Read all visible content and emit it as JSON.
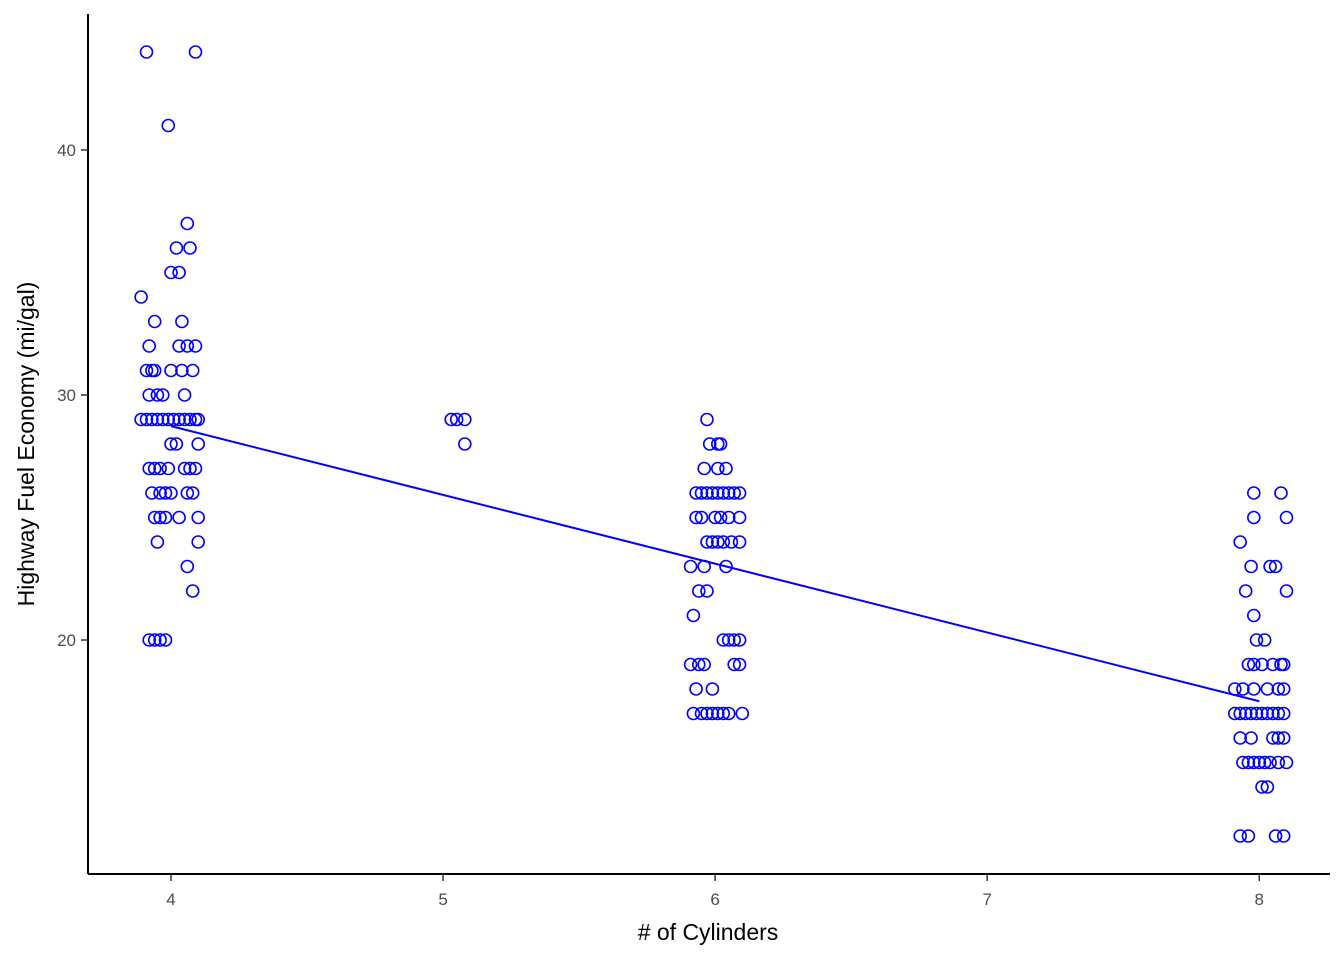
{
  "chart_data": {
    "type": "scatter",
    "title": "",
    "xlabel": "# of Cylinders",
    "ylabel": "Highway Fuel Economy (mi/gal)",
    "xlim": [
      3.695,
      8.26
    ],
    "ylim": [
      10.45,
      45.55
    ],
    "xticks": [
      4,
      5,
      6,
      7,
      8
    ],
    "yticks": [
      20,
      30,
      40
    ],
    "grid": false,
    "legend": "none",
    "point_color": "#0000ff",
    "point_style": "hollow circle",
    "series": [
      {
        "values": [
          [
            3.91,
            44
          ],
          [
            4.09,
            44
          ],
          [
            3.99,
            41
          ],
          [
            3.89,
            34
          ],
          [
            4.06,
            37
          ],
          [
            4.02,
            36
          ],
          [
            4.07,
            36
          ],
          [
            4.0,
            35
          ],
          [
            4.03,
            35
          ],
          [
            3.94,
            33
          ],
          [
            4.04,
            33
          ],
          [
            3.92,
            32
          ],
          [
            4.03,
            32
          ],
          [
            4.06,
            32
          ],
          [
            4.09,
            32
          ],
          [
            3.91,
            31
          ],
          [
            3.93,
            31
          ],
          [
            3.94,
            31
          ],
          [
            4.0,
            31
          ],
          [
            4.04,
            31
          ],
          [
            4.08,
            31
          ],
          [
            3.92,
            30
          ],
          [
            3.95,
            30
          ],
          [
            3.97,
            30
          ],
          [
            4.05,
            30
          ],
          [
            3.89,
            29
          ],
          [
            3.91,
            29
          ],
          [
            3.93,
            29
          ],
          [
            3.95,
            29
          ],
          [
            3.97,
            29
          ],
          [
            3.99,
            29
          ],
          [
            4.01,
            29
          ],
          [
            4.03,
            29
          ],
          [
            4.05,
            29
          ],
          [
            4.07,
            29
          ],
          [
            4.09,
            29
          ],
          [
            4.1,
            29
          ],
          [
            4.0,
            28
          ],
          [
            4.02,
            28
          ],
          [
            4.1,
            28
          ],
          [
            3.92,
            27
          ],
          [
            3.94,
            27
          ],
          [
            3.96,
            27
          ],
          [
            3.99,
            27
          ],
          [
            4.05,
            27
          ],
          [
            4.07,
            27
          ],
          [
            4.09,
            27
          ],
          [
            3.93,
            26
          ],
          [
            3.96,
            26
          ],
          [
            3.98,
            26
          ],
          [
            4.0,
            26
          ],
          [
            4.06,
            26
          ],
          [
            4.08,
            26
          ],
          [
            3.94,
            25
          ],
          [
            3.96,
            25
          ],
          [
            3.98,
            25
          ],
          [
            4.03,
            25
          ],
          [
            4.1,
            25
          ],
          [
            3.95,
            24
          ],
          [
            4.1,
            24
          ],
          [
            4.06,
            23
          ],
          [
            4.08,
            22
          ],
          [
            3.92,
            20
          ],
          [
            3.94,
            20
          ],
          [
            3.96,
            20
          ],
          [
            3.98,
            20
          ],
          [
            5.03,
            29
          ],
          [
            5.05,
            29
          ],
          [
            5.08,
            29
          ],
          [
            5.08,
            28
          ],
          [
            5.97,
            29
          ],
          [
            5.98,
            28
          ],
          [
            6.01,
            28
          ],
          [
            6.02,
            28
          ],
          [
            5.96,
            27
          ],
          [
            6.01,
            27
          ],
          [
            6.04,
            27
          ],
          [
            5.93,
            26
          ],
          [
            5.95,
            26
          ],
          [
            5.97,
            26
          ],
          [
            5.99,
            26
          ],
          [
            6.01,
            26
          ],
          [
            6.03,
            26
          ],
          [
            6.05,
            26
          ],
          [
            6.07,
            26
          ],
          [
            6.09,
            26
          ],
          [
            5.93,
            25
          ],
          [
            5.95,
            25
          ],
          [
            6.0,
            25
          ],
          [
            6.02,
            25
          ],
          [
            6.05,
            25
          ],
          [
            6.09,
            25
          ],
          [
            5.97,
            24
          ],
          [
            5.99,
            24
          ],
          [
            6.01,
            24
          ],
          [
            6.03,
            24
          ],
          [
            6.06,
            24
          ],
          [
            6.09,
            24
          ],
          [
            5.91,
            23
          ],
          [
            5.96,
            23
          ],
          [
            6.04,
            23
          ],
          [
            5.94,
            22
          ],
          [
            5.97,
            22
          ],
          [
            5.92,
            21
          ],
          [
            6.03,
            20
          ],
          [
            6.05,
            20
          ],
          [
            6.07,
            20
          ],
          [
            6.09,
            20
          ],
          [
            5.91,
            19
          ],
          [
            5.94,
            19
          ],
          [
            5.96,
            19
          ],
          [
            6.07,
            19
          ],
          [
            6.09,
            19
          ],
          [
            5.93,
            18
          ],
          [
            5.99,
            18
          ],
          [
            5.92,
            17
          ],
          [
            5.95,
            17
          ],
          [
            5.97,
            17
          ],
          [
            5.99,
            17
          ],
          [
            6.01,
            17
          ],
          [
            6.03,
            17
          ],
          [
            6.05,
            17
          ],
          [
            6.1,
            17
          ],
          [
            7.98,
            26
          ],
          [
            8.08,
            26
          ],
          [
            7.98,
            25
          ],
          [
            8.1,
            25
          ],
          [
            7.93,
            24
          ],
          [
            7.97,
            23
          ],
          [
            8.04,
            23
          ],
          [
            8.06,
            23
          ],
          [
            7.95,
            22
          ],
          [
            8.1,
            22
          ],
          [
            7.98,
            21
          ],
          [
            7.99,
            20
          ],
          [
            8.02,
            20
          ],
          [
            7.96,
            19
          ],
          [
            7.98,
            19
          ],
          [
            8.01,
            19
          ],
          [
            8.05,
            19
          ],
          [
            8.08,
            19
          ],
          [
            8.09,
            19
          ],
          [
            7.91,
            18
          ],
          [
            7.94,
            18
          ],
          [
            7.98,
            18
          ],
          [
            8.03,
            18
          ],
          [
            8.07,
            18
          ],
          [
            8.09,
            18
          ],
          [
            7.91,
            17
          ],
          [
            7.93,
            17
          ],
          [
            7.95,
            17
          ],
          [
            7.97,
            17
          ],
          [
            7.99,
            17
          ],
          [
            8.01,
            17
          ],
          [
            8.03,
            17
          ],
          [
            8.05,
            17
          ],
          [
            8.07,
            17
          ],
          [
            8.09,
            17
          ],
          [
            7.93,
            16
          ],
          [
            7.97,
            16
          ],
          [
            8.05,
            16
          ],
          [
            8.07,
            16
          ],
          [
            8.09,
            16
          ],
          [
            7.94,
            15
          ],
          [
            7.96,
            15
          ],
          [
            7.98,
            15
          ],
          [
            8.0,
            15
          ],
          [
            8.02,
            15
          ],
          [
            8.04,
            15
          ],
          [
            8.07,
            15
          ],
          [
            8.1,
            15
          ],
          [
            8.01,
            14
          ],
          [
            8.03,
            14
          ],
          [
            7.93,
            12
          ],
          [
            7.96,
            12
          ],
          [
            8.06,
            12
          ],
          [
            8.09,
            12
          ]
        ]
      }
    ],
    "trend_line": {
      "type": "linear",
      "x": [
        4,
        8
      ],
      "y": [
        28.73,
        17.5
      ]
    }
  }
}
